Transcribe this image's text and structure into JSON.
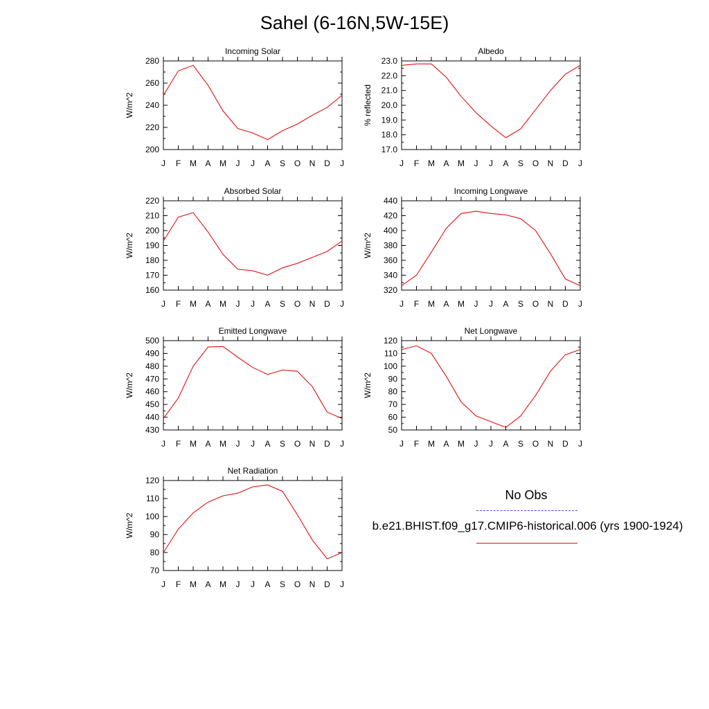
{
  "title": "Sahel (6-16N,5W-15E)",
  "months": [
    "J",
    "F",
    "M",
    "A",
    "M",
    "J",
    "J",
    "A",
    "S",
    "O",
    "N",
    "D",
    "J"
  ],
  "line_color": "#e01010",
  "obs_color": "#4a4af0",
  "legend": {
    "obs_label": "No Obs",
    "model_label": "b.e21.BHIST.f09_g17.CMIP6-historical.006 (yrs 1900-1924)"
  },
  "chart_data": [
    {
      "type": "line",
      "title": "Incoming Solar",
      "ylabel": "W/m^2",
      "ylim": [
        200,
        280
      ],
      "yticks": [
        200,
        220,
        240,
        260,
        280
      ],
      "categories": [
        "J",
        "F",
        "M",
        "A",
        "M",
        "J",
        "J",
        "A",
        "S",
        "O",
        "N",
        "D",
        "J"
      ],
      "values": [
        249,
        271,
        276,
        258,
        235,
        219,
        215,
        209,
        217,
        223,
        231,
        238,
        249
      ]
    },
    {
      "type": "line",
      "title": "Albedo",
      "ylabel": "% reflected",
      "ylim": [
        17.0,
        23.0
      ],
      "yticks": [
        "17.0",
        "18.0",
        "19.0",
        "20.0",
        "21.0",
        "22.0",
        "23.0"
      ],
      "categories": [
        "J",
        "F",
        "M",
        "A",
        "M",
        "J",
        "J",
        "A",
        "S",
        "O",
        "N",
        "D",
        "J"
      ],
      "values": [
        22.7,
        22.8,
        22.8,
        21.9,
        20.6,
        19.5,
        18.6,
        17.8,
        18.4,
        19.7,
        21.0,
        22.1,
        22.7
      ]
    },
    {
      "type": "line",
      "title": "Absorbed Solar",
      "ylabel": "W/m^2",
      "ylim": [
        160,
        220
      ],
      "yticks": [
        160,
        170,
        180,
        190,
        200,
        210,
        220
      ],
      "categories": [
        "J",
        "F",
        "M",
        "A",
        "M",
        "J",
        "J",
        "A",
        "S",
        "O",
        "N",
        "D",
        "J"
      ],
      "values": [
        193,
        209,
        212,
        199,
        184,
        174,
        173,
        170,
        175,
        178,
        182,
        186,
        193
      ]
    },
    {
      "type": "line",
      "title": "Incoming Longwave",
      "ylabel": "W/m^2",
      "ylim": [
        320,
        440
      ],
      "yticks": [
        320,
        340,
        360,
        380,
        400,
        420,
        440
      ],
      "categories": [
        "J",
        "F",
        "M",
        "A",
        "M",
        "J",
        "J",
        "A",
        "S",
        "O",
        "N",
        "D",
        "J"
      ],
      "values": [
        326,
        340,
        371,
        403,
        423,
        426,
        423,
        421,
        416,
        400,
        369,
        335,
        326
      ]
    },
    {
      "type": "line",
      "title": "Emitted Longwave",
      "ylabel": "W/m^2",
      "ylim": [
        430,
        500
      ],
      "yticks": [
        430,
        440,
        450,
        460,
        470,
        480,
        490,
        500
      ],
      "categories": [
        "J",
        "F",
        "M",
        "A",
        "M",
        "J",
        "J",
        "A",
        "S",
        "O",
        "N",
        "D",
        "J"
      ],
      "values": [
        439,
        455,
        480,
        495,
        495.5,
        487,
        479,
        473.5,
        477,
        476,
        464,
        444,
        439
      ]
    },
    {
      "type": "line",
      "title": "Net Longwave",
      "ylabel": "W/m^2",
      "ylim": [
        50,
        120
      ],
      "yticks": [
        50,
        60,
        70,
        80,
        90,
        100,
        110,
        120
      ],
      "categories": [
        "J",
        "F",
        "M",
        "A",
        "M",
        "J",
        "J",
        "A",
        "S",
        "O",
        "N",
        "D",
        "J"
      ],
      "values": [
        113,
        116,
        110,
        92,
        72,
        61,
        56.5,
        52,
        61,
        77,
        96,
        109,
        113
      ]
    },
    {
      "type": "line",
      "title": "Net Radiation",
      "ylabel": "W/m^2",
      "ylim": [
        70,
        120
      ],
      "yticks": [
        70,
        80,
        90,
        100,
        110,
        120
      ],
      "categories": [
        "J",
        "F",
        "M",
        "A",
        "M",
        "J",
        "J",
        "A",
        "S",
        "O",
        "N",
        "D",
        "J"
      ],
      "values": [
        80,
        93,
        102,
        108,
        111.5,
        113,
        116.5,
        117.5,
        114,
        101,
        87,
        76.5,
        80
      ]
    }
  ]
}
